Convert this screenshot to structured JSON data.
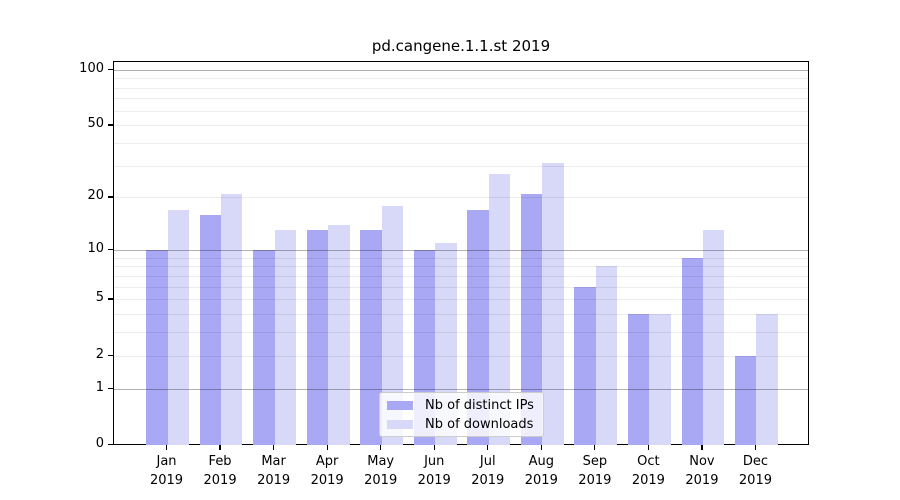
{
  "title": "pd.cangene.1.1.st 2019",
  "chart_data": {
    "type": "bar",
    "title": "pd.cangene.1.1.st 2019",
    "categories": [
      "Jan",
      "Feb",
      "Mar",
      "Apr",
      "May",
      "Jun",
      "Jul",
      "Aug",
      "Sep",
      "Oct",
      "Nov",
      "Dec"
    ],
    "category_year": "2019",
    "series": [
      {
        "name": "Nb of distinct IPs",
        "color": "#a8a8f4",
        "values": [
          10,
          16,
          10,
          13,
          13,
          10,
          17,
          21,
          6,
          4,
          9,
          2
        ]
      },
      {
        "name": "Nb of downloads",
        "color": "#d8d8f8",
        "values": [
          17,
          21,
          13,
          14,
          18,
          11,
          27,
          31,
          8,
          4,
          13,
          4
        ]
      }
    ],
    "xlabel": "",
    "ylabel": "",
    "y_scale": "log10(value+1)",
    "y_ticks": [
      0,
      1,
      2,
      5,
      10,
      20,
      50,
      100
    ],
    "y_minor_gridlines": [
      2,
      3,
      4,
      5,
      6,
      7,
      8,
      9,
      20,
      30,
      40,
      50,
      60,
      70,
      80,
      90
    ],
    "y_major_gridlines": [
      1,
      10,
      100
    ],
    "ylim": [
      0,
      109
    ],
    "grid": true,
    "legend_position": "bottom-center"
  }
}
